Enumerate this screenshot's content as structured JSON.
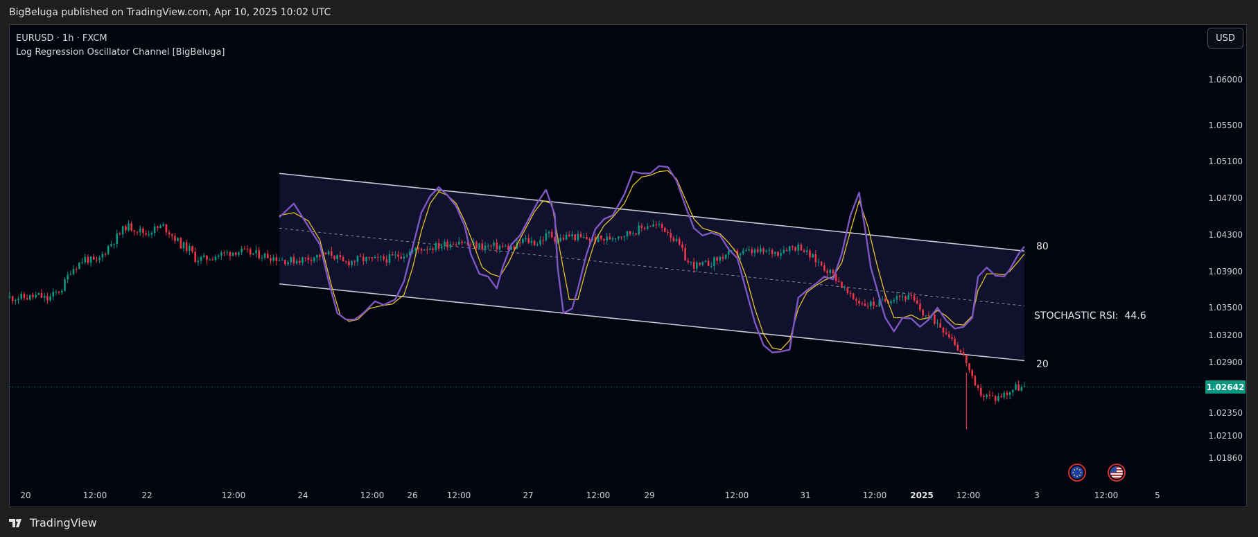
{
  "header": {
    "publisher_line": "BigBeluga published on TradingView.com, Apr 10, 2025 10:02 UTC"
  },
  "legend": {
    "symbol_line": "EURUSD · 1h · FXCM",
    "indicator_line": "Log Regression Oscillator Channel [BigBeluga]"
  },
  "currency_button": "USD",
  "price_axis": {
    "ticks": [
      "1.06000",
      "1.05500",
      "1.05100",
      "1.04700",
      "1.04300",
      "1.03900",
      "1.03500",
      "1.03200",
      "1.02900",
      "1.02350",
      "1.02100",
      "1.01860"
    ],
    "current_price": "1.02642"
  },
  "time_axis": {
    "ticks": [
      "20",
      "12:00",
      "22",
      "12:00",
      "24",
      "12:00",
      "26",
      "12:00",
      "27",
      "12:00",
      "29",
      "12:00",
      "31",
      "12:00",
      "2025",
      "12:00",
      "3",
      "12:00",
      "5"
    ]
  },
  "oscillator": {
    "level_high": "80",
    "level_low": "20",
    "label": "STOCHASTIC RSI:",
    "value": "44.6"
  },
  "event_icons": [
    "eu-flag-icon",
    "us-flag-icon"
  ],
  "footer": {
    "brand": "TradingView"
  },
  "colors": {
    "up": "#089981",
    "down": "#f23645",
    "stoch_k": "#7e57c2",
    "stoch_d": "#e6c229",
    "channel": "#c9c9d6",
    "background": "#020510"
  },
  "chart_data": {
    "type": "candlestick",
    "symbol": "EURUSD",
    "interval": "1h",
    "ylim": [
      1.0172,
      1.0615
    ],
    "current_price": 1.02642,
    "price_path": [
      [
        0,
        1.0362
      ],
      [
        6,
        1.0362
      ],
      [
        10,
        1.0364
      ],
      [
        13,
        1.036
      ],
      [
        18,
        1.0372
      ],
      [
        21,
        1.0392
      ],
      [
        26,
        1.0405
      ],
      [
        30,
        1.04
      ],
      [
        34,
        1.0418
      ],
      [
        38,
        1.0432
      ],
      [
        40,
        1.044
      ],
      [
        43,
        1.0438
      ],
      [
        47,
        1.0432
      ],
      [
        49,
        1.0436
      ],
      [
        53,
        1.044
      ],
      [
        55,
        1.0434
      ],
      [
        59,
        1.042
      ],
      [
        62,
        1.0415
      ],
      [
        64,
        1.0405
      ],
      [
        67,
        1.0404
      ],
      [
        71,
        1.0408
      ],
      [
        74,
        1.041
      ],
      [
        78,
        1.0413
      ],
      [
        84,
        1.041
      ],
      [
        90,
        1.0407
      ],
      [
        96,
        1.0402
      ],
      [
        101,
        1.0404
      ],
      [
        105,
        1.0407
      ],
      [
        111,
        1.041
      ],
      [
        115,
        1.04
      ],
      [
        121,
        1.0404
      ],
      [
        126,
        1.0403
      ],
      [
        131,
        1.0405
      ],
      [
        134,
        1.0408
      ],
      [
        138,
        1.0412
      ],
      [
        142,
        1.0416
      ],
      [
        147,
        1.0418
      ],
      [
        152,
        1.0422
      ],
      [
        155,
        1.0425
      ],
      [
        158,
        1.042
      ],
      [
        164,
        1.0418
      ],
      [
        169,
        1.0418
      ],
      [
        174,
        1.0416
      ],
      [
        177,
        1.0425
      ],
      [
        182,
        1.0422
      ],
      [
        186,
        1.0432
      ],
      [
        189,
        1.0425
      ],
      [
        193,
        1.043
      ],
      [
        197,
        1.0427
      ],
      [
        202,
        1.0426
      ],
      [
        206,
        1.0426
      ],
      [
        209,
        1.043
      ],
      [
        213,
        1.0432
      ],
      [
        218,
        1.0438
      ],
      [
        220,
        1.0442
      ],
      [
        224,
        1.044
      ],
      [
        227,
        1.0435
      ],
      [
        231,
        1.0418
      ],
      [
        234,
        1.04
      ],
      [
        238,
        1.0396
      ],
      [
        243,
        1.0402
      ],
      [
        247,
        1.0409
      ],
      [
        252,
        1.0411
      ],
      [
        256,
        1.0412
      ],
      [
        261,
        1.0412
      ],
      [
        265,
        1.0412
      ],
      [
        268,
        1.0417
      ],
      [
        273,
        1.0418
      ],
      [
        275,
        1.041
      ],
      [
        280,
        1.0398
      ],
      [
        285,
        1.0384
      ],
      [
        290,
        1.0362
      ],
      [
        295,
        1.0355
      ],
      [
        299,
        1.0355
      ],
      [
        303,
        1.036
      ],
      [
        306,
        1.0365
      ],
      [
        311,
        1.0361
      ],
      [
        315,
        1.0345
      ],
      [
        320,
        1.0335
      ],
      [
        325,
        1.0318
      ],
      [
        330,
        1.0292
      ],
      [
        333,
        1.0262
      ],
      [
        336,
        1.0255
      ],
      [
        340,
        1.0252
      ],
      [
        344,
        1.0258
      ],
      [
        347,
        1.0264
      ],
      [
        350,
        1.0263
      ]
    ],
    "channel": {
      "upper": [
        [
          93,
          1.0498
        ],
        [
          350,
          1.0413
        ]
      ],
      "lower": [
        [
          93,
          1.0377
        ],
        [
          350,
          1.0293
        ]
      ],
      "mid": [
        [
          93,
          1.0438
        ],
        [
          350,
          1.0353
        ]
      ]
    },
    "stochastic_rsi": {
      "levels": [
        80,
        20
      ],
      "last_value": 44.6,
      "k": [
        [
          93,
          1.045
        ],
        [
          98,
          1.0465
        ],
        [
          103,
          1.044
        ],
        [
          107,
          1.042
        ],
        [
          110,
          1.038
        ],
        [
          113,
          1.0345
        ],
        [
          116,
          1.0338
        ],
        [
          119,
          1.0338
        ],
        [
          122,
          1.0345
        ],
        [
          126,
          1.0358
        ],
        [
          129,
          1.0354
        ],
        [
          133,
          1.036
        ],
        [
          136,
          1.038
        ],
        [
          138,
          1.0405
        ],
        [
          140,
          1.043
        ],
        [
          142,
          1.0455
        ],
        [
          145,
          1.0473
        ],
        [
          148,
          1.0483
        ],
        [
          151,
          1.0474
        ],
        [
          154,
          1.0462
        ],
        [
          157,
          1.044
        ],
        [
          159,
          1.041
        ],
        [
          162,
          1.0388
        ],
        [
          165,
          1.0385
        ],
        [
          168,
          1.0372
        ],
        [
          170,
          1.0395
        ],
        [
          173,
          1.042
        ],
        [
          176,
          1.043
        ],
        [
          179,
          1.0448
        ],
        [
          182,
          1.0466
        ],
        [
          185,
          1.048
        ],
        [
          188,
          1.0453
        ],
        [
          189,
          1.0395
        ],
        [
          191,
          1.0345
        ],
        [
          194,
          1.035
        ],
        [
          196,
          1.0372
        ],
        [
          199,
          1.041
        ],
        [
          202,
          1.0437
        ],
        [
          205,
          1.0448
        ],
        [
          208,
          1.0452
        ],
        [
          212,
          1.0475
        ],
        [
          215,
          1.05
        ],
        [
          218,
          1.0498
        ],
        [
          221,
          1.0498
        ],
        [
          224,
          1.0506
        ],
        [
          227,
          1.0505
        ],
        [
          230,
          1.049
        ],
        [
          233,
          1.0463
        ],
        [
          236,
          1.0438
        ],
        [
          239,
          1.043
        ],
        [
          242,
          1.0433
        ],
        [
          245,
          1.043
        ],
        [
          248,
          1.0415
        ],
        [
          251,
          1.0405
        ],
        [
          254,
          1.037
        ],
        [
          257,
          1.0335
        ],
        [
          260,
          1.031
        ],
        [
          263,
          1.0302
        ],
        [
          266,
          1.0303
        ],
        [
          269,
          1.0305
        ],
        [
          272,
          1.0362
        ],
        [
          275,
          1.037
        ],
        [
          278,
          1.0377
        ],
        [
          281,
          1.0385
        ],
        [
          284,
          1.0382
        ],
        [
          287,
          1.041
        ],
        [
          290,
          1.0452
        ],
        [
          293,
          1.0477
        ],
        [
          295,
          1.0438
        ],
        [
          297,
          1.0395
        ],
        [
          300,
          1.0362
        ],
        [
          302,
          1.034
        ],
        [
          305,
          1.0325
        ],
        [
          308,
          1.034
        ],
        [
          311,
          1.0339
        ],
        [
          314,
          1.033
        ],
        [
          317,
          1.0338
        ],
        [
          320,
          1.0351
        ],
        [
          323,
          1.0337
        ],
        [
          326,
          1.0328
        ],
        [
          329,
          1.033
        ],
        [
          332,
          1.034
        ],
        [
          334,
          1.0385
        ],
        [
          337,
          1.0395
        ],
        [
          340,
          1.0386
        ],
        [
          343,
          1.0385
        ],
        [
          345,
          1.0393
        ],
        [
          348,
          1.041
        ],
        [
          350,
          1.0418
        ]
      ],
      "d": [
        [
          93,
          1.0452
        ],
        [
          98,
          1.0455
        ],
        [
          103,
          1.0446
        ],
        [
          107,
          1.0425
        ],
        [
          111,
          1.0375
        ],
        [
          114,
          1.0343
        ],
        [
          117,
          1.0336
        ],
        [
          120,
          1.0338
        ],
        [
          124,
          1.035
        ],
        [
          128,
          1.0353
        ],
        [
          132,
          1.0355
        ],
        [
          136,
          1.0365
        ],
        [
          139,
          1.0395
        ],
        [
          142,
          1.0435
        ],
        [
          145,
          1.0465
        ],
        [
          148,
          1.0478
        ],
        [
          151,
          1.0474
        ],
        [
          154,
          1.0465
        ],
        [
          157,
          1.0445
        ],
        [
          160,
          1.042
        ],
        [
          163,
          1.0395
        ],
        [
          166,
          1.0388
        ],
        [
          169,
          1.0385
        ],
        [
          172,
          1.04
        ],
        [
          175,
          1.042
        ],
        [
          178,
          1.0438
        ],
        [
          181,
          1.0456
        ],
        [
          184,
          1.0468
        ],
        [
          187,
          1.0465
        ],
        [
          190,
          1.041
        ],
        [
          193,
          1.036
        ],
        [
          196,
          1.036
        ],
        [
          199,
          1.0395
        ],
        [
          202,
          1.0425
        ],
        [
          205,
          1.0441
        ],
        [
          208,
          1.045
        ],
        [
          212,
          1.0465
        ],
        [
          215,
          1.0485
        ],
        [
          218,
          1.0494
        ],
        [
          221,
          1.0496
        ],
        [
          224,
          1.05
        ],
        [
          227,
          1.0501
        ],
        [
          230,
          1.0492
        ],
        [
          233,
          1.047
        ],
        [
          236,
          1.0448
        ],
        [
          239,
          1.0438
        ],
        [
          242,
          1.0435
        ],
        [
          245,
          1.0432
        ],
        [
          248,
          1.0422
        ],
        [
          251,
          1.041
        ],
        [
          254,
          1.0385
        ],
        [
          257,
          1.035
        ],
        [
          260,
          1.0322
        ],
        [
          263,
          1.0307
        ],
        [
          266,
          1.0305
        ],
        [
          269,
          1.0315
        ],
        [
          272,
          1.035
        ],
        [
          275,
          1.0368
        ],
        [
          278,
          1.0375
        ],
        [
          281,
          1.0381
        ],
        [
          284,
          1.0385
        ],
        [
          287,
          1.04
        ],
        [
          290,
          1.0435
        ],
        [
          293,
          1.0468
        ],
        [
          296,
          1.044
        ],
        [
          299,
          1.04
        ],
        [
          302,
          1.0365
        ],
        [
          305,
          1.034
        ],
        [
          308,
          1.034
        ],
        [
          311,
          1.0343
        ],
        [
          314,
          1.0338
        ],
        [
          317,
          1.034
        ],
        [
          320,
          1.0348
        ],
        [
          323,
          1.0342
        ],
        [
          326,
          1.0333
        ],
        [
          329,
          1.0332
        ],
        [
          332,
          1.0342
        ],
        [
          334,
          1.037
        ],
        [
          337,
          1.0388
        ],
        [
          340,
          1.0388
        ],
        [
          343,
          1.0387
        ],
        [
          345,
          1.0391
        ],
        [
          348,
          1.0402
        ],
        [
          350,
          1.041
        ]
      ]
    },
    "x_axis_ticks": [
      "20",
      "12:00",
      "22",
      "12:00",
      "24",
      "12:00",
      "26",
      "12:00",
      "27",
      "12:00",
      "29",
      "12:00",
      "31",
      "12:00",
      "2025",
      "12:00",
      "3",
      "12:00",
      "5"
    ],
    "y_axis_ticks": [
      1.06,
      1.055,
      1.051,
      1.047,
      1.043,
      1.039,
      1.035,
      1.032,
      1.029,
      1.0235,
      1.021,
      1.0186
    ]
  }
}
